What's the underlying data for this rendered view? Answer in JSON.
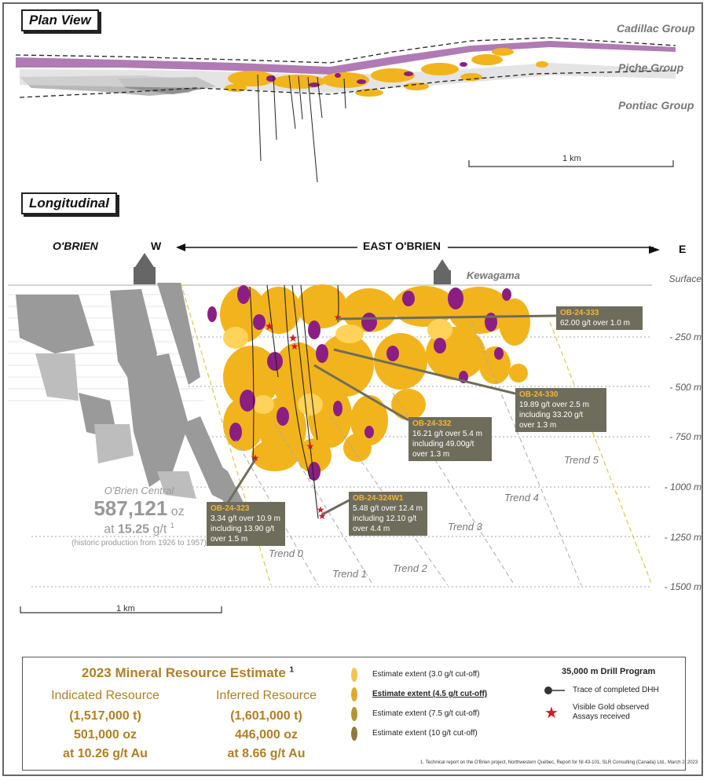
{
  "plan_view": {
    "title": "Plan View",
    "groups": [
      "Cadillac Group",
      "Piche Group",
      "Pontiac Group"
    ],
    "scale_label": "1 km"
  },
  "longitudinal": {
    "title": "Longitudinal",
    "obrien_label": "O'BRIEN",
    "west": "W",
    "east_label": "EAST O'BRIEN",
    "east": "E",
    "kewagama": "Kewagama",
    "surface": "Surface",
    "depths": [
      "- 250 m",
      "- 500 m",
      "- 750 m",
      "- 1000 m",
      "- 1250 m",
      "- 1500 m"
    ],
    "trends": [
      "Trend 0",
      "Trend 1",
      "Trend 2",
      "Trend 3",
      "Trend 4",
      "Trend 5"
    ],
    "scale_label": "1 km",
    "obrien_central": {
      "name": "O'Brien Central",
      "ounces": "587,121",
      "ounces_unit": "oz",
      "grade_prefix": "at",
      "grade": "15.25",
      "grade_unit": "g/t",
      "footnote_mark": "1",
      "note": "(historic production from 1926 to 1957)"
    },
    "callouts": [
      {
        "id": "OB-24-333",
        "lines": [
          "62.00 g/t over 1.0 m"
        ]
      },
      {
        "id": "OB-24-330",
        "lines": [
          "19.89 g/t over 2.5 m",
          "including 33.20 g/t",
          "over 1.3 m"
        ]
      },
      {
        "id": "OB-24-332",
        "lines": [
          "16.21 g/t over 5.4 m",
          "including 49.00g/t",
          "over 1.3 m"
        ]
      },
      {
        "id": "OB-24-323",
        "lines": [
          "3.34 g/t over 10.9 m",
          "including 13.90 g/t",
          "over 1.5 m"
        ]
      },
      {
        "id": "OB-24-324W1",
        "lines": [
          "5.48 g/t over 12.4 m",
          "including 12.10 g/t",
          "over 4.4 m"
        ]
      }
    ]
  },
  "legend": {
    "title": "2023 Mineral Resource Estimate",
    "title_mark": "1",
    "indicated": {
      "label": "Indicated Resource",
      "tonnes": "(1,517,000 t)",
      "ounces": "501,000 oz",
      "grade": "at 10.26 g/t Au"
    },
    "inferred": {
      "label": "Inferred Resource",
      "tonnes": "(1,601,000 t)",
      "ounces": "446,000 oz",
      "grade": "at 8.66 g/t Au"
    },
    "extents": [
      "Estimate extent (3.0  g/t cut-off)",
      "Estimate extent (4.5  g/t cut-off)",
      "Estimate extent (7.5 g/t cut-off)",
      "Estimate extent (10 g/t cut-off)"
    ],
    "program_title": "35,000 m Drill Program",
    "dhh_label": "Trace of completed DHH",
    "vg_label_1": "Visible Gold observed",
    "vg_label_2": "Assays received",
    "footnote": "1. Technical report on the O'Brien project, Northwestern Québec, Report for NI 43-101, SLR Consulting (Canada) Ltd., March 2, 2023"
  },
  "colors": {
    "gold": "#f2b41c",
    "purple": "#8c1e83",
    "grey": "#9a9a9a",
    "callout_bg": "#6e6d5c",
    "accent_text": "#b07f24"
  }
}
